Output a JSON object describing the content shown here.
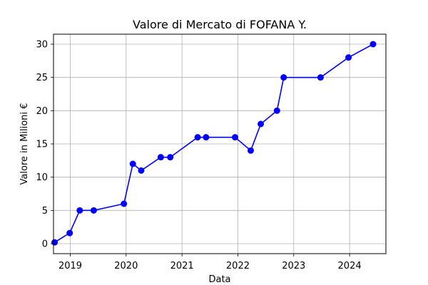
{
  "chart_data": {
    "type": "line",
    "title": "Valore di Mercato di FOFANA Y.",
    "xlabel": "Data",
    "ylabel": "Valore in Milioni €",
    "grid": true,
    "legend": "none",
    "xlim": [
      2018.7,
      2024.65
    ],
    "ylim": [
      -1.5,
      31.5
    ],
    "xticks": [
      2019,
      2020,
      2021,
      2022,
      2023,
      2024
    ],
    "yticks": [
      0,
      5,
      10,
      15,
      20,
      25,
      30
    ],
    "series": [
      {
        "color": "#0000ff",
        "marker": "circle",
        "x": [
          2018.72,
          2018.99,
          2019.17,
          2019.42,
          2019.96,
          2020.12,
          2020.27,
          2020.62,
          2020.79,
          2021.28,
          2021.43,
          2021.95,
          2022.23,
          2022.41,
          2022.7,
          2022.82,
          2023.48,
          2023.98,
          2024.42
        ],
        "y": [
          0.2,
          1.6,
          5,
          5,
          6,
          12,
          11,
          13,
          13,
          16,
          16,
          16,
          14,
          18,
          20,
          25,
          25,
          28,
          30
        ]
      }
    ]
  }
}
